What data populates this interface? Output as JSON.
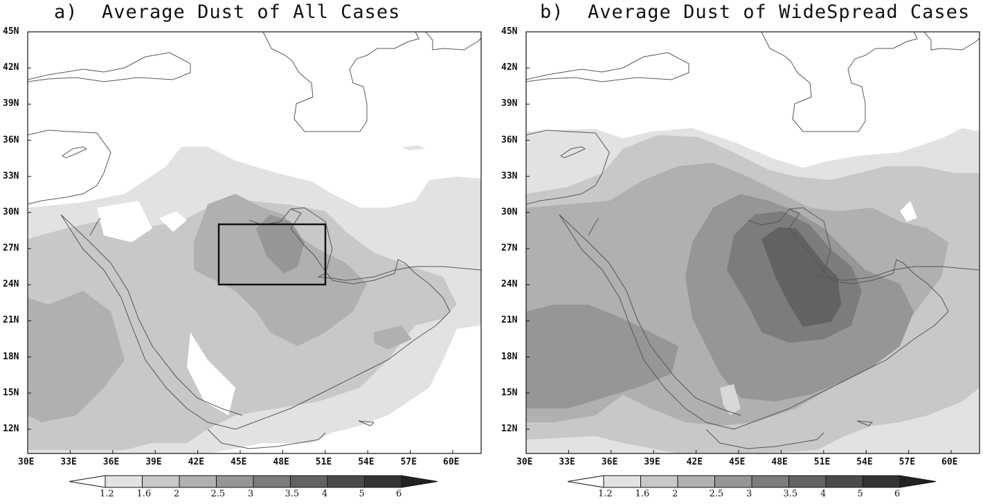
{
  "panels": [
    {
      "id": "a",
      "title": "a)  Average Dust of All Cases",
      "lat_ticks": [
        "45N",
        "42N",
        "39N",
        "36N",
        "33N",
        "30N",
        "27N",
        "24N",
        "21N",
        "18N",
        "15N",
        "12N"
      ],
      "lon_ticks": [
        "30E",
        "33E",
        "36E",
        "39E",
        "42E",
        "45E",
        "48E",
        "51E",
        "54E",
        "57E",
        "60E"
      ],
      "legend": [
        "1.2",
        "1.6",
        "2",
        "2.5",
        "3",
        "3.5",
        "4",
        "5",
        "6"
      ],
      "box_region": {
        "lon_min": 43.5,
        "lon_max": 51,
        "lat_min": 24,
        "lat_max": 29
      }
    },
    {
      "id": "b",
      "title": "b)  Average Dust of WideSpread Cases",
      "lat_ticks": [
        "45N",
        "42N",
        "39N",
        "36N",
        "33N",
        "30N",
        "27N",
        "24N",
        "21N",
        "18N",
        "15N",
        "12N"
      ],
      "lon_ticks": [
        "30E",
        "33E",
        "36E",
        "39E",
        "42E",
        "45E",
        "48E",
        "51E",
        "54E",
        "57E",
        "60E"
      ],
      "legend": [
        "1.2",
        "1.6",
        "2",
        "2.5",
        "3",
        "3.5",
        "4",
        "5",
        "6"
      ]
    }
  ],
  "colors": {
    "level_1": "#e2e2e2",
    "level_2": "#c8c8c8",
    "level_3": "#b0b0b0",
    "level_4": "#969696",
    "level_5": "#7c7c7c",
    "level_6": "#626262",
    "level_7": "#4a4a4a",
    "level_8": "#333333",
    "coast": "#555555"
  }
}
